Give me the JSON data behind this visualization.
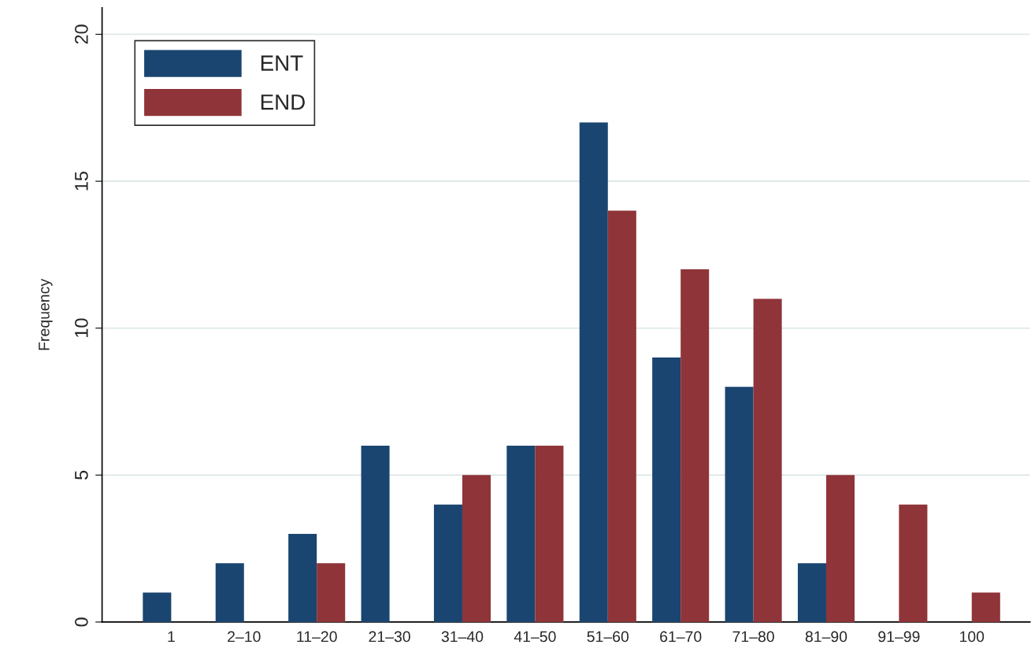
{
  "chart_data": {
    "type": "bar",
    "ylabel": "Frequency",
    "categories": [
      "1",
      "2–10",
      "11–20",
      "21–30",
      "31–40",
      "41–50",
      "51–60",
      "61–70",
      "71–80",
      "81–90",
      "91–99",
      "100"
    ],
    "series": [
      {
        "name": "ENT",
        "color": "#1a4570",
        "values": [
          1,
          2,
          3,
          6,
          4,
          6,
          17,
          9,
          8,
          2,
          null,
          null
        ]
      },
      {
        "name": "END",
        "color": "#8f3439",
        "values": [
          null,
          null,
          2,
          null,
          5,
          6,
          14,
          12,
          11,
          5,
          4,
          1
        ]
      }
    ],
    "ylim": [
      0,
      20.9
    ],
    "yticks": [
      0,
      5,
      10,
      15,
      20
    ],
    "grid": "y",
    "legend": "top left"
  }
}
